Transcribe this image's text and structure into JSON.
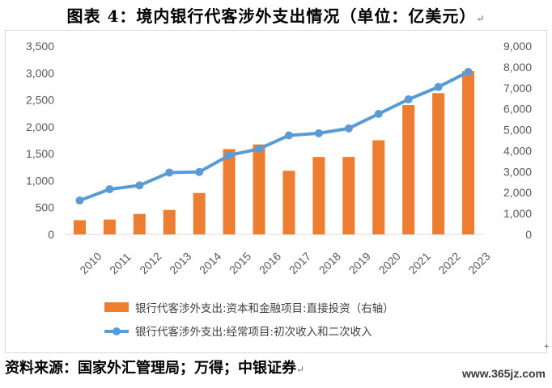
{
  "title": "图表 4：境内银行代客涉外支出情况（单位：亿美元）",
  "paragraph_mark": "↵",
  "corner_mark": "+",
  "source": "资料来源：国家外汇管理局；万得；中银证券",
  "watermark": "www.365jz.com",
  "colors": {
    "bar": "#ED7D31",
    "line": "#5B9BD5",
    "axis_text": "#595959",
    "grid": "#d9d9d9"
  },
  "chart_data": {
    "type": "bar+line",
    "categories": [
      "2010",
      "2011",
      "2012",
      "2013",
      "2014",
      "2015",
      "2016",
      "2017",
      "2018",
      "2019",
      "2020",
      "2021",
      "2022",
      "2023"
    ],
    "left_axis": {
      "ticks": [
        "0",
        "500",
        "1,000",
        "1,500",
        "2,000",
        "2,500",
        "3,000",
        "3,500"
      ],
      "ylim": [
        0,
        3500
      ]
    },
    "right_axis": {
      "ticks": [
        "0",
        "1,000",
        "2,000",
        "3,000",
        "4,000",
        "5,000",
        "6,000",
        "7,000",
        "8,000",
        "9,000"
      ],
      "ylim": [
        0,
        9000
      ]
    },
    "series": [
      {
        "name": "银行代客涉外支出:资本和金融项目:直接投资（右轴）",
        "type": "bar",
        "axis": "right",
        "values": [
          680,
          710,
          980,
          1170,
          1980,
          4080,
          4300,
          3040,
          3700,
          3700,
          4500,
          6180,
          6750,
          7800
        ]
      },
      {
        "name": "银行代客涉外支出:经常项目:初次收入和二次收入",
        "type": "line",
        "axis": "left",
        "values": [
          630,
          840,
          910,
          1150,
          1160,
          1470,
          1590,
          1840,
          1880,
          1970,
          2240,
          2510,
          2740,
          3020
        ]
      }
    ],
    "legend_position": "bottom",
    "grid": false
  }
}
